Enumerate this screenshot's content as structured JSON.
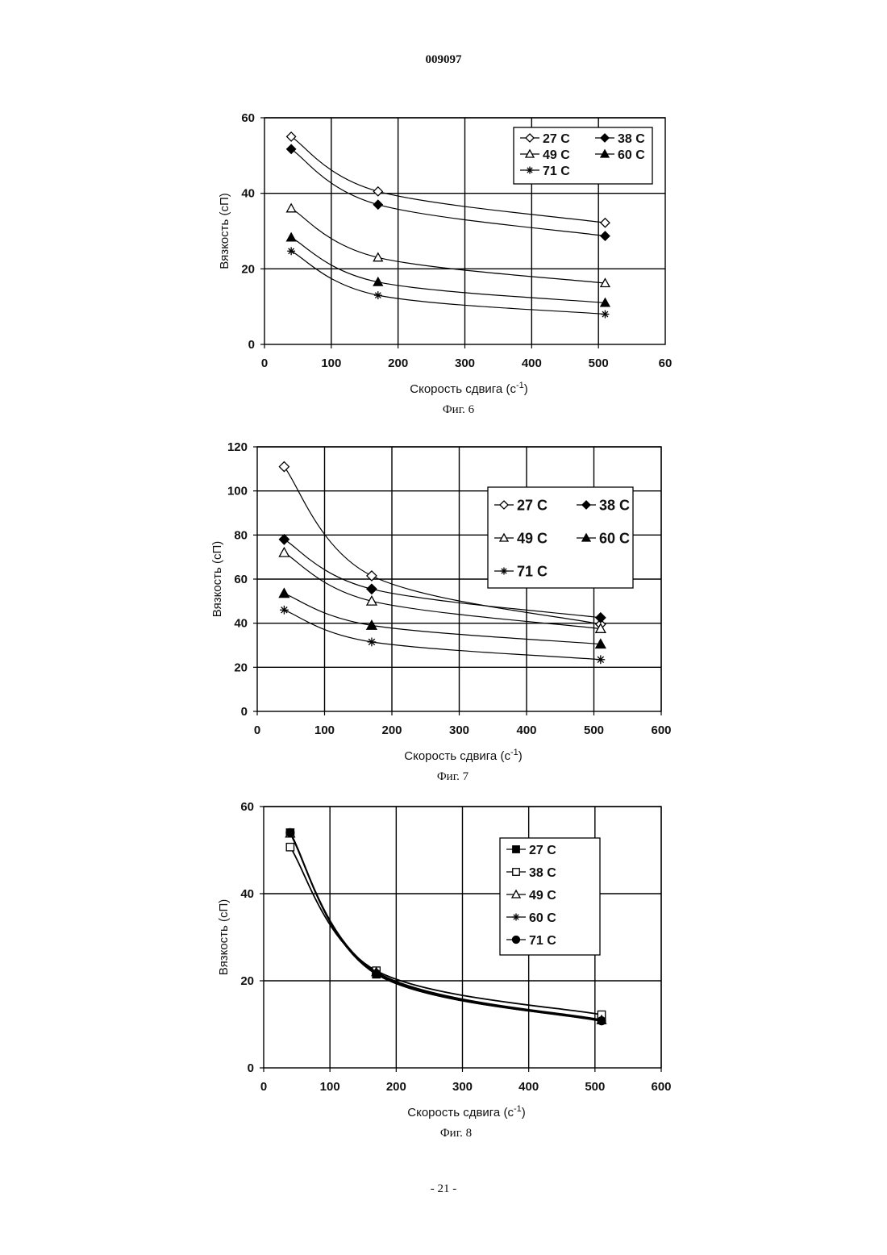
{
  "header": {
    "doc_number": "009097"
  },
  "footer": {
    "page_number": "- 21 -"
  },
  "chart_data": [
    {
      "type": "line",
      "caption": "Фиг. 6",
      "xlabel": "Скорость сдвига (с-1)",
      "xlabel_main": "Скорость сдвига (с",
      "xlabel_sup": "-1",
      "xlabel_close": ")",
      "ylabel": "Вязкость (сП)",
      "xlim": [
        0,
        600
      ],
      "ylim": [
        0,
        60
      ],
      "xticks": [
        0,
        100,
        200,
        300,
        400,
        500
      ],
      "xtick_labels": [
        "0",
        "100",
        "200",
        "300",
        "400",
        "500",
        "60"
      ],
      "yticks": [
        0,
        20,
        40,
        60
      ],
      "grid": true,
      "legend_position": "top-right",
      "legend_columns": 2,
      "series": [
        {
          "name": "27 C",
          "marker": "diamond-open",
          "x": [
            40,
            170,
            510
          ],
          "y": [
            55,
            40.5,
            32.2
          ]
        },
        {
          "name": "38 C",
          "marker": "diamond-filled",
          "x": [
            40,
            170,
            510
          ],
          "y": [
            51.7,
            37,
            28.7
          ]
        },
        {
          "name": "49 C",
          "marker": "triangle-open",
          "x": [
            40,
            170,
            510
          ],
          "y": [
            36,
            23,
            16.2
          ]
        },
        {
          "name": "60 C",
          "marker": "triangle-filled",
          "x": [
            40,
            170,
            510
          ],
          "y": [
            28.3,
            16.5,
            11
          ]
        },
        {
          "name": "71 C",
          "marker": "asterisk",
          "x": [
            40,
            170,
            510
          ],
          "y": [
            24.7,
            13,
            8
          ]
        }
      ]
    },
    {
      "type": "line",
      "caption": "Фиг. 7",
      "xlabel": "Скорость сдвига (с-1)",
      "xlabel_main": "Скорость сдвига (с",
      "xlabel_sup": "-1",
      "xlabel_close": ")",
      "ylabel": "Вязкость (сП)",
      "xlim": [
        0,
        600
      ],
      "ylim": [
        0,
        120
      ],
      "xticks": [
        0,
        100,
        200,
        300,
        400,
        500,
        600
      ],
      "xtick_labels": [
        "0",
        "100",
        "200",
        "300",
        "400",
        "500",
        "600"
      ],
      "yticks": [
        0,
        20,
        40,
        60,
        80,
        100,
        120
      ],
      "grid": true,
      "legend_position": "top-right",
      "legend_columns": 2,
      "series": [
        {
          "name": "27 C",
          "marker": "diamond-open",
          "x": [
            40,
            170,
            510
          ],
          "y": [
            111,
            61.5,
            39.5
          ]
        },
        {
          "name": "38 C",
          "marker": "diamond-filled",
          "x": [
            40,
            170,
            510
          ],
          "y": [
            78,
            55.5,
            42.5
          ]
        },
        {
          "name": "49 C",
          "marker": "triangle-open",
          "x": [
            40,
            170,
            510
          ],
          "y": [
            72,
            50,
            37.5
          ]
        },
        {
          "name": "60 C",
          "marker": "triangle-filled",
          "x": [
            40,
            170,
            510
          ],
          "y": [
            53.5,
            39,
            30.5
          ]
        },
        {
          "name": "71 C",
          "marker": "asterisk",
          "x": [
            40,
            170,
            510
          ],
          "y": [
            46,
            31.5,
            23.5
          ]
        }
      ]
    },
    {
      "type": "line",
      "caption": "Фиг. 8",
      "xlabel": "Скорость сдвига (с-1)",
      "xlabel_main": "Скорость сдвига (с",
      "xlabel_sup": "-1",
      "xlabel_close": ")",
      "ylabel": "Вязкость (сП)",
      "xlim": [
        0,
        600
      ],
      "ylim": [
        0,
        60
      ],
      "xticks": [
        0,
        100,
        200,
        300,
        400,
        500,
        600
      ],
      "xtick_labels": [
        "0",
        "100",
        "200",
        "300",
        "400",
        "500",
        "600"
      ],
      "yticks": [
        0,
        20,
        40,
        60
      ],
      "grid": true,
      "legend_position": "top-right",
      "legend_columns": 1,
      "series": [
        {
          "name": "27 C",
          "marker": "square-filled",
          "x": [
            40,
            170,
            510
          ],
          "y": [
            54,
            21.5,
            11
          ]
        },
        {
          "name": "38 C",
          "marker": "square-open",
          "x": [
            40,
            170,
            510
          ],
          "y": [
            50.7,
            22.3,
            12.2
          ]
        },
        {
          "name": "49 C",
          "marker": "triangle-open",
          "x": [
            40,
            170,
            510
          ],
          "y": [
            53.8,
            22,
            11
          ]
        },
        {
          "name": "60 C",
          "marker": "asterisk",
          "x": [
            40,
            170,
            510
          ],
          "y": [
            54,
            21.8,
            10.7
          ]
        },
        {
          "name": "71 C",
          "marker": "circle-filled",
          "x": [
            40,
            170,
            510
          ],
          "y": [
            54,
            21.6,
            10.8
          ]
        }
      ]
    }
  ]
}
